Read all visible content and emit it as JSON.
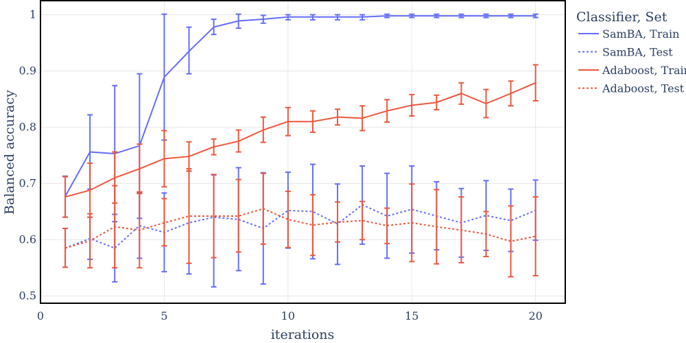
{
  "chart_data": {
    "type": "line",
    "xlabel": "iterations",
    "ylabel": "Balanced accuracy",
    "xlim": [
      0,
      21.2
    ],
    "ylim": [
      0.487,
      1.025
    ],
    "xticks": [
      0,
      5,
      10,
      15,
      20
    ],
    "yticks": [
      0.5,
      0.6,
      0.7,
      0.8,
      0.9,
      1
    ],
    "ytick_labels": [
      "0.5",
      "0.6",
      "0.7",
      "0.8",
      "0.9",
      "1"
    ],
    "grid": true,
    "legend": {
      "title": "Classifier, Set",
      "placement": "right"
    },
    "x": [
      1,
      2,
      3,
      4,
      5,
      6,
      7,
      8,
      9,
      10,
      11,
      12,
      13,
      14,
      15,
      16,
      17,
      18,
      19,
      20
    ],
    "series": [
      {
        "name": "SamBA, Train",
        "color": "#636efa",
        "dash": "solid",
        "values": [
          0.677,
          0.756,
          0.753,
          0.767,
          0.889,
          0.935,
          0.978,
          0.989,
          0.992,
          0.996,
          0.996,
          0.996,
          0.996,
          0.998,
          0.998,
          0.998,
          0.998,
          0.998,
          0.998,
          0.998
        ],
        "lower": [
          0.64,
          0.69,
          0.632,
          0.638,
          0.777,
          0.895,
          0.965,
          0.976,
          0.985,
          0.991,
          0.991,
          0.991,
          0.991,
          0.995,
          0.995,
          0.995,
          0.995,
          0.995,
          0.995,
          0.995
        ],
        "upper": [
          0.713,
          0.822,
          0.874,
          0.895,
          1.001,
          0.978,
          0.992,
          1.001,
          0.999,
          1.0,
          1.0,
          1.0,
          1.0,
          1.001,
          1.001,
          1.001,
          1.001,
          1.001,
          1.001,
          1.001
        ]
      },
      {
        "name": "SamBA, Test",
        "color": "#636efa",
        "dash": "dot",
        "values": [
          0.585,
          0.602,
          0.585,
          0.625,
          0.613,
          0.63,
          0.64,
          0.636,
          0.62,
          0.652,
          0.65,
          0.628,
          0.662,
          0.642,
          0.654,
          0.642,
          0.63,
          0.643,
          0.634,
          0.652
        ],
        "lower": [
          0.551,
          0.565,
          0.525,
          0.567,
          0.543,
          0.539,
          0.516,
          0.545,
          0.521,
          0.585,
          0.566,
          0.556,
          0.592,
          0.567,
          0.576,
          0.582,
          0.569,
          0.581,
          0.579,
          0.599
        ],
        "upper": [
          0.62,
          0.64,
          0.645,
          0.684,
          0.683,
          0.722,
          0.715,
          0.728,
          0.719,
          0.72,
          0.734,
          0.699,
          0.731,
          0.718,
          0.731,
          0.703,
          0.691,
          0.705,
          0.69,
          0.706
        ]
      },
      {
        "name": "Adaboost, Train",
        "color": "#ef553b",
        "dash": "solid",
        "values": [
          0.676,
          0.688,
          0.71,
          0.726,
          0.744,
          0.748,
          0.765,
          0.775,
          0.795,
          0.81,
          0.81,
          0.818,
          0.816,
          0.829,
          0.839,
          0.844,
          0.86,
          0.842,
          0.86,
          0.879
        ],
        "lower": [
          0.64,
          0.64,
          0.665,
          0.682,
          0.694,
          0.722,
          0.751,
          0.756,
          0.773,
          0.785,
          0.791,
          0.804,
          0.794,
          0.809,
          0.82,
          0.831,
          0.841,
          0.817,
          0.838,
          0.847
        ],
        "upper": [
          0.712,
          0.736,
          0.756,
          0.77,
          0.794,
          0.774,
          0.779,
          0.795,
          0.818,
          0.835,
          0.829,
          0.832,
          0.838,
          0.849,
          0.858,
          0.857,
          0.879,
          0.867,
          0.882,
          0.911
        ]
      },
      {
        "name": "Adaboost, Test",
        "color": "#ef553b",
        "dash": "dot",
        "values": [
          0.585,
          0.598,
          0.623,
          0.617,
          0.63,
          0.642,
          0.642,
          0.642,
          0.655,
          0.636,
          0.626,
          0.631,
          0.634,
          0.625,
          0.63,
          0.623,
          0.617,
          0.61,
          0.597,
          0.606
        ],
        "lower": [
          0.551,
          0.55,
          0.55,
          0.55,
          0.589,
          0.558,
          0.568,
          0.578,
          0.592,
          0.586,
          0.572,
          0.596,
          0.6,
          0.593,
          0.561,
          0.557,
          0.559,
          0.57,
          0.534,
          0.536
        ],
        "upper": [
          0.62,
          0.646,
          0.696,
          0.685,
          0.673,
          0.726,
          0.716,
          0.707,
          0.718,
          0.686,
          0.68,
          0.667,
          0.668,
          0.656,
          0.699,
          0.689,
          0.676,
          0.65,
          0.66,
          0.676
        ]
      }
    ]
  }
}
